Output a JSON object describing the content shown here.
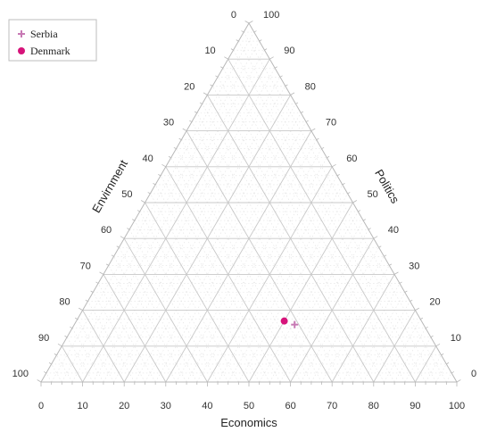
{
  "chart_data": {
    "type": "scatter",
    "subtype": "ternary",
    "title": "",
    "axes": {
      "bottom": {
        "label": "Economics",
        "ticks": [
          "0",
          "10",
          "20",
          "30",
          "40",
          "50",
          "60",
          "70",
          "80",
          "90",
          "100"
        ]
      },
      "left": {
        "label": "Envirnment",
        "ticks": [
          "0",
          "10",
          "20",
          "30",
          "40",
          "50",
          "60",
          "70",
          "80",
          "90",
          "100"
        ]
      },
      "right": {
        "label": "Politics",
        "ticks": [
          "0",
          "10",
          "20",
          "30",
          "40",
          "50",
          "60",
          "70",
          "80",
          "90",
          "100"
        ]
      }
    },
    "range": [
      0,
      100
    ],
    "grid": true,
    "legend": {
      "position": "top-left",
      "entries": [
        {
          "name": "Serbia",
          "marker": "plus",
          "color": "#c779b4"
        },
        {
          "name": "Denmark",
          "marker": "circle",
          "color": "#d6137a"
        }
      ]
    },
    "series": [
      {
        "name": "Serbia",
        "points": [
          {
            "economics": 53,
            "envirnment": 31,
            "politics": 16
          }
        ]
      },
      {
        "name": "Denmark",
        "points": [
          {
            "economics": 50,
            "envirnment": 33,
            "politics": 17
          }
        ]
      }
    ]
  }
}
